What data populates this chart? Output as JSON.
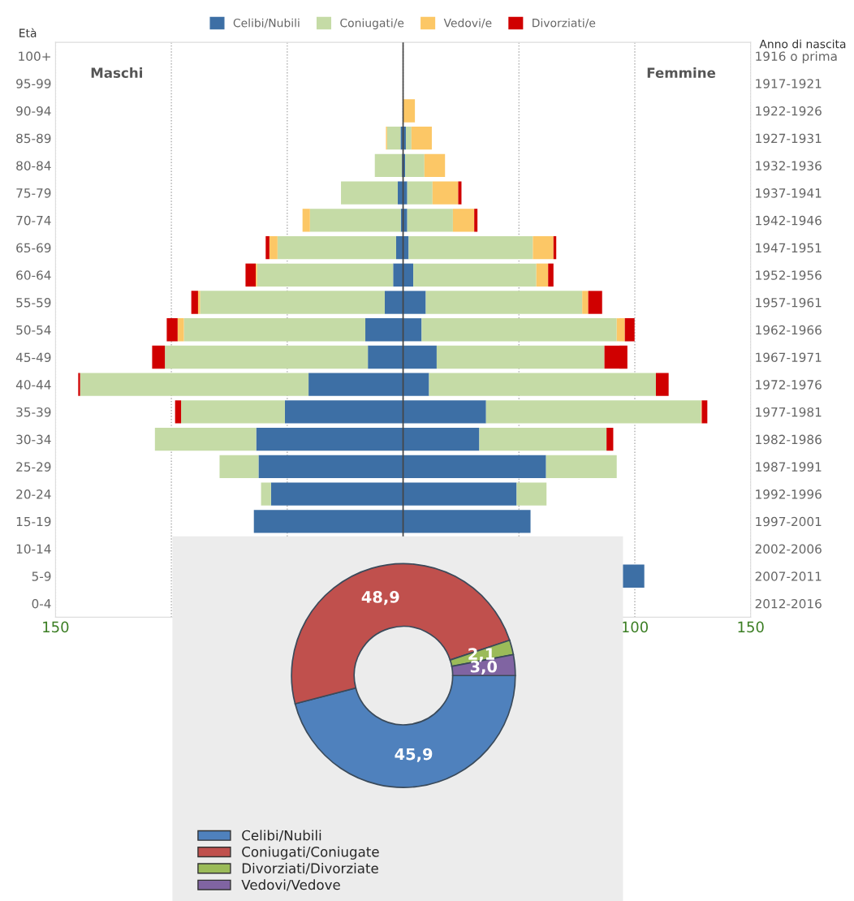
{
  "chart_data": [
    {
      "type": "bar",
      "orientation": "horizontal",
      "stacked": true,
      "categories": [
        "100+",
        "95-99",
        "90-94",
        "85-89",
        "80-84",
        "75-79",
        "70-74",
        "65-69",
        "60-64",
        "55-59",
        "50-54",
        "45-49",
        "40-44",
        "35-39",
        "30-34",
        "25-29",
        "20-24",
        "15-19",
        "10-14",
        "5-9",
        "0-4"
      ],
      "y2_categories": [
        "1916 o prima",
        "1917-1921",
        "1922-1926",
        "1927-1931",
        "1932-1936",
        "1937-1941",
        "1942-1946",
        "1947-1951",
        "1952-1956",
        "1957-1961",
        "1962-1966",
        "1967-1971",
        "1972-1976",
        "1977-1981",
        "1982-1986",
        "1987-1991",
        "1992-1996",
        "1997-2001",
        "2002-2006",
        "2007-2011",
        "2012-2016"
      ],
      "ylabel": "Età",
      "y2label": "Anno di nascita",
      "series": [
        {
          "color": "#3d6fa5",
          "values": [
            0,
            0,
            0,
            -1.1,
            -0.5,
            -2.3,
            -1.0,
            -3.0,
            -4.3,
            -7.9,
            -16.3,
            -15.2,
            -40.8,
            -51.0,
            -63.4,
            -62.4,
            -57.0,
            -64.4,
            null,
            null,
            null
          ]
        },
        {
          "color": "#c5dba6",
          "values": [
            0,
            0,
            0,
            -5.8,
            -11.7,
            -24.5,
            -39.2,
            -51.2,
            -58.7,
            -79.7,
            -78.3,
            -87.6,
            -98.6,
            -44.8,
            -43.7,
            -16.8,
            -4.3,
            0,
            null,
            null,
            null
          ]
        },
        {
          "color": "#fcc766",
          "values": [
            0,
            0,
            0,
            -0.5,
            0,
            0,
            -3.2,
            -3.5,
            -0.6,
            -0.9,
            -2.7,
            0,
            0,
            0,
            0,
            0,
            0,
            0,
            null,
            null,
            null
          ]
        },
        {
          "color": "#d00000",
          "values": [
            0,
            0,
            0,
            0,
            0,
            0,
            0,
            -1.6,
            -4.4,
            -2.9,
            -4.7,
            -5.5,
            -0.8,
            -2.6,
            0,
            0,
            0,
            0,
            null,
            null,
            null
          ]
        },
        {
          "name": "Celibi/Nubili",
          "color": "#3d6fa5",
          "values": [
            0,
            0,
            0,
            1.2,
            0.9,
            1.8,
            1.8,
            2.4,
            4.4,
            9.8,
            8.0,
            14.5,
            11.2,
            35.8,
            32.9,
            61.7,
            49.0,
            55.0,
            null,
            104.1,
            null
          ]
        },
        {
          "name": "Coniugati/e",
          "color": "#c5dba6",
          "values": [
            0,
            0,
            0,
            2.4,
            8.3,
            10.9,
            19.7,
            53.6,
            53.1,
            67.5,
            84.2,
            72.4,
            97.9,
            92.8,
            54.9,
            30.5,
            12.9,
            0,
            null,
            null,
            null
          ]
        },
        {
          "name": "Vedovi/e",
          "color": "#fcc766",
          "values": [
            0,
            0,
            5.1,
            8.8,
            8.9,
            11.1,
            9.2,
            8.9,
            5.1,
            2.6,
            3.5,
            0,
            0,
            0.3,
            0,
            0,
            0,
            0,
            null,
            null,
            null
          ]
        },
        {
          "name": "Divorziati/e",
          "color": "#d00000",
          "values": [
            0,
            0,
            0,
            0,
            0,
            1.4,
            1.4,
            1.2,
            2.3,
            6.0,
            4.2,
            9.9,
            5.5,
            2.4,
            2.9,
            0,
            0,
            0,
            null,
            null,
            null
          ]
        }
      ],
      "xlim": [
        -150,
        150
      ],
      "xticks": [
        {
          "value": -150,
          "label": "150"
        },
        {
          "value": -100,
          "label": null
        },
        {
          "value": -50,
          "label": null
        },
        {
          "value": 0,
          "label": null
        },
        {
          "value": 50,
          "label": null
        },
        100,
        150
      ],
      "ref_lines": [
        {
          "axis": "x",
          "value": 0,
          "color": "#444444"
        }
      ],
      "annotations": [
        "Maschi",
        "Femmine"
      ],
      "grid": "x",
      "legend": "top"
    },
    {
      "type": "donut",
      "categories": [
        "Celibi/Nubili",
        "Coniugati/Coniugate",
        "Divorziati/Divorziate",
        "Vedovi/Vedove"
      ],
      "values": [
        45.9,
        48.9,
        2.1,
        3.0
      ],
      "colors": [
        "#4f81bd",
        "#c0504d",
        "#9bbb59",
        "#8064a2"
      ],
      "value_labels": [
        "45,9",
        "48,9",
        "2,1",
        "3,0"
      ],
      "legend": "bottom"
    }
  ]
}
